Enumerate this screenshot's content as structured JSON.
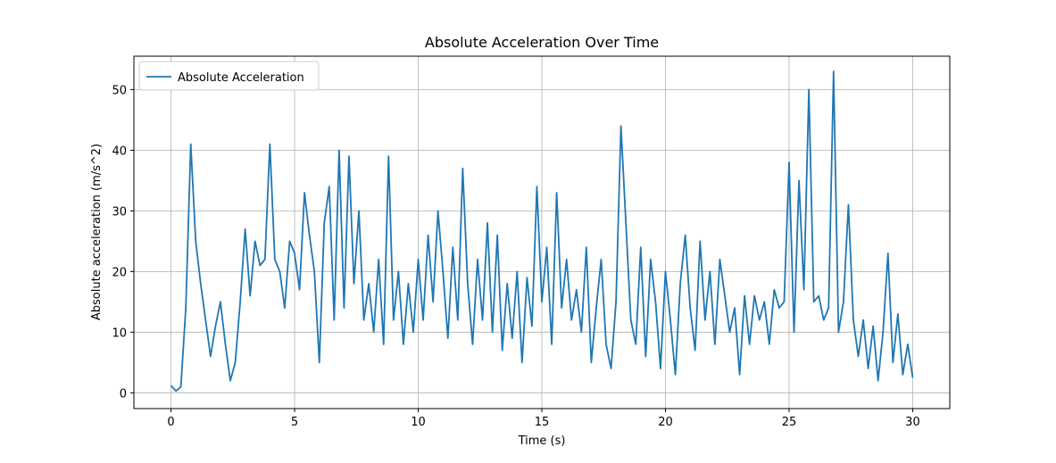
{
  "chart_data": {
    "type": "line",
    "title": "Absolute Acceleration Over Time",
    "xlabel": "Time (s)",
    "ylabel": "Absolute acceleration (m/s^2)",
    "x": [
      0,
      0.2,
      0.4,
      0.6,
      0.8,
      1,
      1.2,
      1.4,
      1.6,
      1.8,
      2,
      2.2,
      2.4,
      2.6,
      2.8,
      3,
      3.2,
      3.4,
      3.6,
      3.8,
      4,
      4.2,
      4.4,
      4.6,
      4.8,
      5,
      5.2,
      5.4,
      5.6,
      5.8,
      6,
      6.2,
      6.4,
      6.6,
      6.8,
      7,
      7.2,
      7.4,
      7.6,
      7.8,
      8,
      8.2,
      8.4,
      8.6,
      8.8,
      9,
      9.2,
      9.4,
      9.6,
      9.8,
      10,
      10.2,
      10.4,
      10.6,
      10.8,
      11,
      11.2,
      11.4,
      11.6,
      11.8,
      12,
      12.2,
      12.4,
      12.6,
      12.8,
      13,
      13.2,
      13.4,
      13.6,
      13.8,
      14,
      14.2,
      14.4,
      14.6,
      14.8,
      15,
      15.2,
      15.4,
      15.6,
      15.8,
      16,
      16.2,
      16.4,
      16.6,
      16.8,
      17,
      17.2,
      17.4,
      17.6,
      17.8,
      18,
      18.2,
      18.4,
      18.6,
      18.8,
      19,
      19.2,
      19.4,
      19.6,
      19.8,
      20,
      20.2,
      20.4,
      20.6,
      20.8,
      21,
      21.2,
      21.4,
      21.6,
      21.8,
      22,
      22.2,
      22.4,
      22.6,
      22.8,
      23,
      23.2,
      23.4,
      23.6,
      23.8,
      24,
      24.2,
      24.4,
      24.6,
      24.8,
      25,
      25.2,
      25.4,
      25.6,
      25.8,
      26,
      26.2,
      26.4,
      26.6,
      26.8,
      27,
      27.2,
      27.4,
      27.6,
      27.8,
      28,
      28.2,
      28.4,
      28.6,
      28.8,
      29,
      29.2,
      29.4,
      29.6,
      29.8,
      30
    ],
    "series": [
      {
        "name": "Absolute Acceleration",
        "color": "#1f77b4",
        "values": [
          1.2,
          0.3,
          1.0,
          14,
          41,
          25,
          18,
          12,
          6,
          11,
          15,
          8,
          2,
          5,
          15,
          27,
          16,
          25,
          21,
          22,
          41,
          22,
          20,
          14,
          25,
          23,
          17,
          33,
          26,
          20,
          5,
          28,
          34,
          12,
          40,
          14,
          39,
          18,
          30,
          12,
          18,
          10,
          22,
          8,
          39,
          12,
          20,
          8,
          18,
          10,
          22,
          12,
          26,
          15,
          30,
          20,
          9,
          24,
          12,
          37,
          18,
          8,
          22,
          12,
          28,
          10,
          26,
          7,
          18,
          9,
          20,
          5,
          19,
          11,
          34,
          15,
          24,
          8,
          33,
          14,
          22,
          12,
          17,
          10,
          24,
          5,
          14,
          22,
          8,
          4,
          15,
          44,
          28,
          12,
          8,
          24,
          6,
          22,
          15,
          4,
          20,
          12,
          3,
          18,
          26,
          14,
          7,
          25,
          12,
          20,
          8,
          22,
          16,
          10,
          14,
          3,
          16,
          8,
          16,
          12,
          15,
          8,
          17,
          14,
          15,
          38,
          10,
          35,
          17,
          50,
          15,
          16,
          12,
          14,
          53,
          10,
          15,
          31,
          12,
          6,
          12,
          4,
          11,
          2,
          10,
          23,
          5,
          13,
          3,
          8,
          2.5
        ]
      }
    ],
    "xlim": [
      -1.5,
      31.5
    ],
    "ylim": [
      -2.6,
      55.5
    ],
    "xticks": [
      0,
      5,
      10,
      15,
      20,
      25,
      30
    ],
    "yticks": [
      0,
      10,
      20,
      30,
      40,
      50
    ],
    "grid": true,
    "legend": "upper-left"
  }
}
